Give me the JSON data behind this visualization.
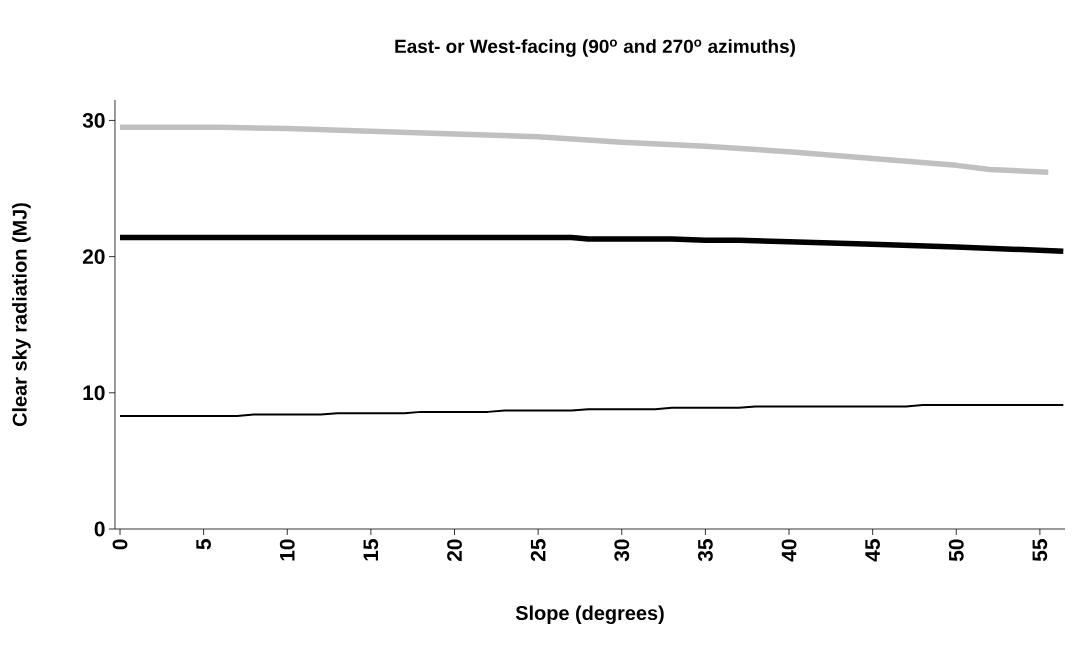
{
  "chart_data": {
    "type": "line",
    "title": "East- or West-facing (90$^{o}$ and 270$^{o}$ azimuths)",
    "xlabel": "Slope (degrees)",
    "ylabel": "Clear sky radiation (MJ)",
    "xlim": [
      -0.3,
      56.5
    ],
    "xticks": [
      0,
      5,
      10,
      15,
      20,
      25,
      30,
      35,
      40,
      45,
      50,
      55
    ],
    "ylim": [
      0,
      31.5
    ],
    "yticks": [
      0,
      10,
      20,
      30
    ],
    "grid": false,
    "marker": "none",
    "line_style": "solid",
    "series": [
      {
        "color": "#c0c0c0",
        "x": [
          0,
          6,
          10,
          15,
          20,
          25,
          30,
          35,
          40,
          45,
          50,
          52,
          55.5
        ],
        "values": [
          29.5,
          29.5,
          29.4,
          29.2,
          29.0,
          28.8,
          28.4,
          28.1,
          27.7,
          27.2,
          26.7,
          26.4,
          26.2
        ]
      },
      {
        "color": "#000000",
        "x": [
          0,
          27,
          28,
          33,
          35,
          37,
          40,
          45,
          50,
          56.4
        ],
        "values": [
          21.4,
          21.4,
          21.3,
          21.3,
          21.2,
          21.2,
          21.1,
          20.9,
          20.7,
          20.4
        ]
      },
      {
        "color": "#000000",
        "x": [
          0,
          7,
          8,
          12,
          13,
          17,
          18,
          22,
          23,
          27,
          28,
          32,
          33,
          37,
          38,
          47,
          48,
          56.4
        ],
        "values": [
          8.3,
          8.3,
          8.4,
          8.4,
          8.5,
          8.5,
          8.6,
          8.6,
          8.7,
          8.7,
          8.8,
          8.8,
          8.9,
          8.9,
          9.0,
          9.0,
          9.1,
          9.1
        ]
      }
    ]
  }
}
